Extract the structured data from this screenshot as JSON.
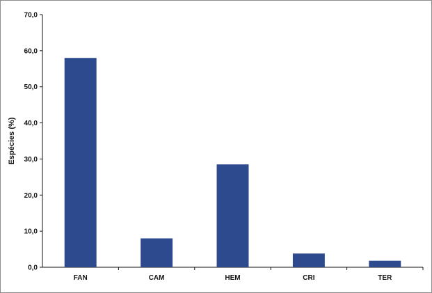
{
  "chart_data": {
    "type": "bar",
    "title": "",
    "xlabel": "",
    "ylabel": "Espécies (%)",
    "categories": [
      "FAN",
      "CAM",
      "HEM",
      "CRI",
      "TER"
    ],
    "values": [
      58.0,
      8.0,
      28.5,
      3.8,
      1.8
    ],
    "ylim": [
      0,
      70
    ],
    "yticks": [
      0,
      10,
      20,
      30,
      40,
      50,
      60,
      70
    ],
    "ytick_labels": [
      "0,0",
      "10,0",
      "20,0",
      "30,0",
      "40,0",
      "50,0",
      "60,0",
      "70,0"
    ],
    "bar_color": "#2e4a8e",
    "grid": false,
    "legend": "none"
  }
}
